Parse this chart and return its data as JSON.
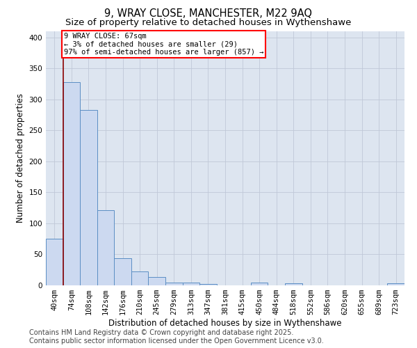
{
  "title_line1": "9, WRAY CLOSE, MANCHESTER, M22 9AQ",
  "title_line2": "Size of property relative to detached houses in Wythenshawe",
  "xlabel": "Distribution of detached houses by size in Wythenshawe",
  "ylabel": "Number of detached properties",
  "bar_labels": [
    "40sqm",
    "74sqm",
    "108sqm",
    "142sqm",
    "176sqm",
    "210sqm",
    "245sqm",
    "279sqm",
    "313sqm",
    "347sqm",
    "381sqm",
    "415sqm",
    "450sqm",
    "484sqm",
    "518sqm",
    "552sqm",
    "586sqm",
    "620sqm",
    "655sqm",
    "689sqm",
    "723sqm"
  ],
  "bar_values": [
    75,
    328,
    283,
    121,
    44,
    23,
    13,
    5,
    5,
    2,
    0,
    0,
    5,
    0,
    3,
    0,
    0,
    0,
    0,
    0,
    3
  ],
  "bar_color": "#ccd9f0",
  "bar_edge_color": "#5b8ec4",
  "annotation_line1": "9 WRAY CLOSE: 67sqm",
  "annotation_line2": "← 3% of detached houses are smaller (29)",
  "annotation_line3": "97% of semi-detached houses are larger (857) →",
  "vline_x": 0.5,
  "vline_color": "#8b0000",
  "ylim": [
    0,
    410
  ],
  "yticks": [
    0,
    50,
    100,
    150,
    200,
    250,
    300,
    350,
    400
  ],
  "grid_color": "#c0c8d8",
  "bg_color": "#dde5f0",
  "footer_line1": "Contains HM Land Registry data © Crown copyright and database right 2025.",
  "footer_line2": "Contains public sector information licensed under the Open Government Licence v3.0.",
  "title_fontsize": 10.5,
  "subtitle_fontsize": 9.5,
  "axis_label_fontsize": 8.5,
  "tick_fontsize": 7.5,
  "annotation_fontsize": 7.5,
  "footer_fontsize": 7
}
